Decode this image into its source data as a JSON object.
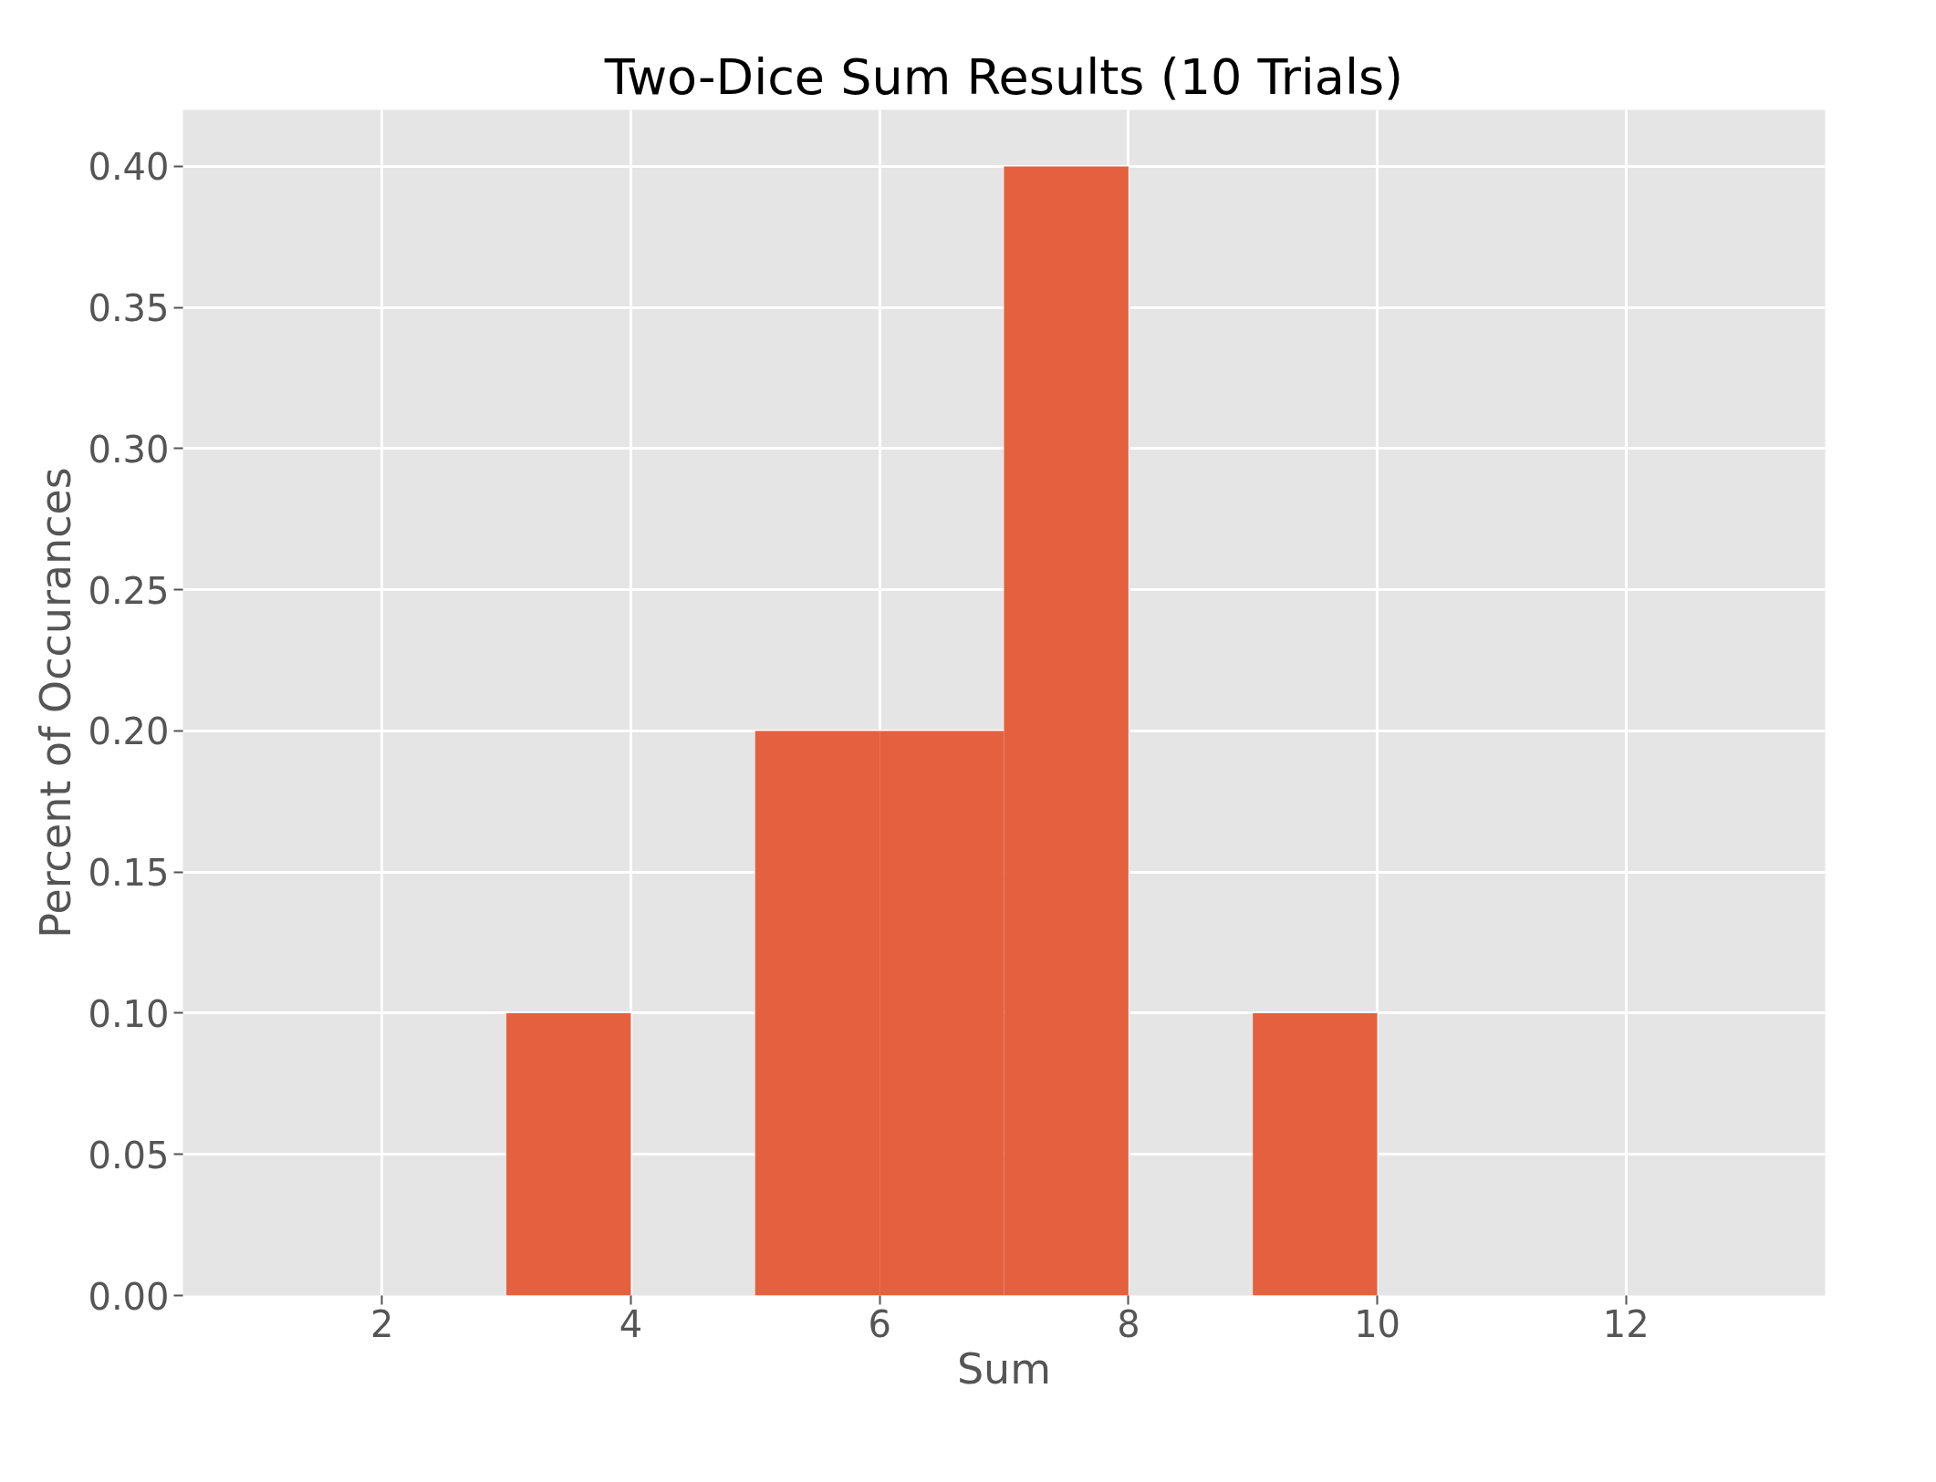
{
  "chart_data": {
    "type": "histogram",
    "title": "Two-Dice Sum Results (10 Trials)",
    "xlabel": "Sum",
    "ylabel": "Percent of Occurances",
    "bins": [
      1,
      2,
      3,
      4,
      5,
      6,
      7,
      8,
      9,
      10,
      11,
      12,
      13
    ],
    "values": [
      0,
      0,
      0.1,
      0,
      0.2,
      0.2,
      0.4,
      0,
      0.1,
      0,
      0,
      0
    ],
    "color": "#e5603f",
    "xlim": [
      0.4,
      13.6
    ],
    "ylim": [
      0,
      0.42
    ],
    "xticks": [
      2,
      4,
      6,
      8,
      10,
      12
    ],
    "yticks": [
      {
        "value": 0,
        "label": "0.00"
      },
      {
        "value": 0.05,
        "label": "0.05"
      },
      {
        "value": 0.1,
        "label": "0.10"
      },
      {
        "value": 0.15,
        "label": "0.15"
      },
      {
        "value": 0.2,
        "label": "0.20"
      },
      {
        "value": 0.25,
        "label": "0.25"
      },
      {
        "value": 0.3,
        "label": "0.30"
      },
      {
        "value": 0.35,
        "label": "0.35"
      },
      {
        "value": 0.4,
        "label": "0.40"
      }
    ],
    "grid": true
  }
}
